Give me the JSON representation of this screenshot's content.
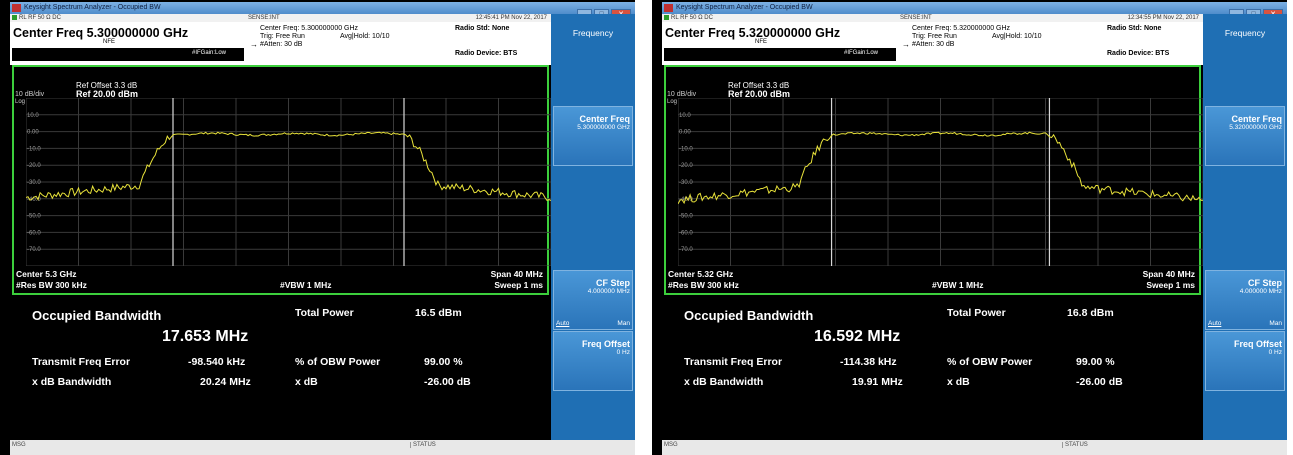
{
  "windows": [
    {
      "title": "Keysight Spectrum Analyzer - Occupied BW",
      "status_top": {
        "left": "RL        RF    50 Ω   DC",
        "mid": "SENSE:INT",
        "right": "12:45:41 PM Nov 22, 2017"
      },
      "header": {
        "center_freq": "Center Freq 5.300000000 GHz",
        "nfe": "NFE",
        "ifgain": "#IFGain:Low",
        "col1_line1": "Center Freq: 5.300000000 GHz",
        "col1_line2": "Trig: Free Run",
        "col1_line3": "#Atten: 30 dB",
        "avg_hold": "Avg|Hold: 10/10",
        "radio_std": "Radio Std: None",
        "radio_device": "Radio Device: BTS"
      },
      "plot": {
        "scale": "10 dB/div",
        "log": "Log",
        "ref_offset": "Ref Offset 3.3 dB",
        "ref": "Ref 20.00 dBm",
        "y_labels": [
          "10.0",
          "0.00",
          "-10.0",
          "-20.0",
          "-30.0",
          "-40.0",
          "-50.0",
          "-60.0",
          "-70.0"
        ],
        "center": "Center  5.3 GHz",
        "res_bw": "#Res BW  300 kHz",
        "vbw": "#VBW  1 MHz",
        "span": "Span 40 MHz",
        "sweep": "Sweep  1 ms"
      },
      "trace": {
        "obw_frac": 0.44,
        "level_top": -1.5,
        "level_floor": -42
      },
      "measurements": {
        "obw_label": "Occupied Bandwidth",
        "obw_value": "17.653 MHz",
        "total_power_label": "Total Power",
        "total_power_value": "16.5 dBm",
        "tfe_label": "Transmit Freq Error",
        "tfe_value": "-98.540 kHz",
        "pct_obw_label": "% of OBW Power",
        "pct_obw_value": "99.00 %",
        "xdb_bw_label": "x dB Bandwidth",
        "xdb_bw_value": "20.24 MHz",
        "xdb_label": "x dB",
        "xdb_value": "-26.00 dB"
      },
      "softkeys": {
        "menu_title": "Frequency",
        "center_freq_title": "Center Freq",
        "center_freq_value": "5.300000000 GHz",
        "cf_step_title": "CF Step",
        "cf_step_value": "4.000000 MHz",
        "auto": "Auto",
        "man": "Man",
        "freq_offset_title": "Freq Offset",
        "freq_offset_value": "0 Hz"
      },
      "bottom": {
        "msg": "MSG",
        "status": "STATUS"
      }
    },
    {
      "title": "Keysight Spectrum Analyzer - Occupied BW",
      "status_top": {
        "left": "RL        RF    50 Ω   DC",
        "mid": "SENSE:INT",
        "right": "12:34:55 PM Nov 22, 2017"
      },
      "header": {
        "center_freq": "Center Freq 5.320000000 GHz",
        "nfe": "NFE",
        "ifgain": "#IFGain:Low",
        "col1_line1": "Center Freq: 5.320000000 GHz",
        "col1_line2": "Trig: Free Run",
        "col1_line3": "#Atten: 30 dB",
        "avg_hold": "Avg|Hold: 10/10",
        "radio_std": "Radio Std: None",
        "radio_device": "Radio Device: BTS"
      },
      "plot": {
        "scale": "10 dB/div",
        "log": "Log",
        "ref_offset": "Ref Offset 3.3 dB",
        "ref": "Ref 20.00 dBm",
        "y_labels": [
          "10.0",
          "0.00",
          "-10.0",
          "-20.0",
          "-30.0",
          "-40.0",
          "-50.0",
          "-60.0",
          "-70.0"
        ],
        "center": "Center  5.32 GHz",
        "res_bw": "#Res BW  300 kHz",
        "vbw": "#VBW  1 MHz",
        "span": "Span 40 MHz",
        "sweep": "Sweep  1 ms"
      },
      "trace": {
        "obw_frac": 0.415,
        "level_top": -1.5,
        "level_floor": -43
      },
      "measurements": {
        "obw_label": "Occupied Bandwidth",
        "obw_value": "16.592 MHz",
        "total_power_label": "Total Power",
        "total_power_value": "16.8 dBm",
        "tfe_label": "Transmit Freq Error",
        "tfe_value": "-114.38 kHz",
        "pct_obw_label": "% of OBW Power",
        "pct_obw_value": "99.00 %",
        "xdb_bw_label": "x dB Bandwidth",
        "xdb_bw_value": "19.91 MHz",
        "xdb_label": "x dB",
        "xdb_value": "-26.00 dB"
      },
      "softkeys": {
        "menu_title": "Frequency",
        "center_freq_title": "Center Freq",
        "center_freq_value": "5.320000000 GHz",
        "cf_step_title": "CF Step",
        "cf_step_value": "4.000000 MHz",
        "auto": "Auto",
        "man": "Man",
        "freq_offset_title": "Freq Offset",
        "freq_offset_value": "0 Hz"
      },
      "bottom": {
        "msg": "MSG",
        "status": "STATUS"
      }
    }
  ]
}
